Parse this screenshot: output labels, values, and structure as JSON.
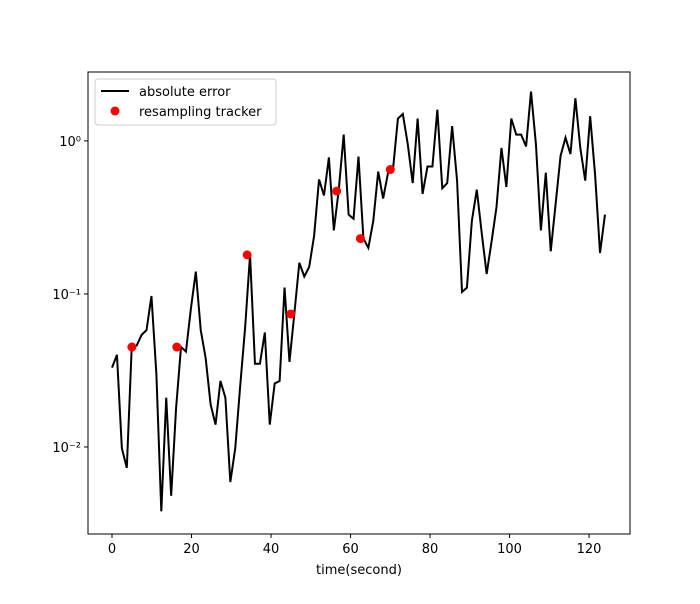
{
  "chart_data": {
    "type": "line",
    "xlabel": "time(second)",
    "xlim": [
      -6.04,
      130.3
    ],
    "xticks": [
      0,
      20,
      40,
      60,
      80,
      100,
      120
    ],
    "ylim": [
      0.0027,
      2.82
    ],
    "yscale": "log",
    "yticks": [
      {
        "value": 0.01,
        "label": "10⁻²"
      },
      {
        "value": 0.1,
        "label": "10⁻¹"
      },
      {
        "value": 1,
        "label": "10⁰"
      }
    ],
    "legend": "upper left",
    "series": [
      {
        "name": "absolute error",
        "kind": "line",
        "color": "#000000",
        "x": [
          0,
          1.24,
          2.48,
          3.72,
          4.96,
          6.2,
          7.44,
          8.68,
          9.92,
          11.16,
          12.4,
          13.64,
          14.88,
          16.12,
          17.36,
          18.6,
          19.84,
          21.08,
          22.32,
          23.56,
          24.8,
          26.04,
          27.28,
          28.52,
          29.76,
          31,
          32.24,
          33.48,
          34.72,
          35.96,
          37.2,
          38.44,
          39.68,
          40.92,
          42.16,
          43.4,
          44.64,
          45.88,
          47.12,
          48.36,
          49.6,
          50.84,
          52.08,
          53.32,
          54.56,
          55.8,
          57.04,
          58.28,
          59.52,
          60.76,
          62,
          63.24,
          64.48,
          65.72,
          66.96,
          68.2,
          69.44,
          70.68,
          71.92,
          73.16,
          74.4,
          75.64,
          76.88,
          78.12,
          79.36,
          80.6,
          81.84,
          83.08,
          84.32,
          85.56,
          86.8,
          88.04,
          89.28,
          90.52,
          91.76,
          93,
          94.24,
          95.48,
          96.72,
          97.96,
          99.2,
          100.44,
          101.68,
          102.92,
          104.16,
          105.4,
          106.64,
          107.88,
          109.12,
          110.36,
          111.6,
          112.84,
          114.08,
          115.32,
          116.56,
          117.8,
          119.04,
          120.28,
          121.52,
          122.76,
          124
        ],
        "values": [
          0.033,
          0.04,
          0.0098,
          0.0073,
          0.045,
          0.046,
          0.054,
          0.058,
          0.097,
          0.03,
          0.0038,
          0.021,
          0.0048,
          0.018,
          0.045,
          0.042,
          0.08,
          0.14,
          0.058,
          0.038,
          0.019,
          0.014,
          0.027,
          0.021,
          0.0059,
          0.0098,
          0.025,
          0.06,
          0.18,
          0.035,
          0.035,
          0.056,
          0.014,
          0.026,
          0.027,
          0.11,
          0.036,
          0.075,
          0.16,
          0.13,
          0.15,
          0.24,
          0.56,
          0.44,
          0.78,
          0.26,
          0.48,
          1.1,
          0.33,
          0.31,
          0.79,
          0.23,
          0.2,
          0.3,
          0.63,
          0.42,
          0.62,
          0.65,
          1.4,
          1.5,
          0.95,
          0.53,
          1.4,
          0.45,
          0.68,
          0.68,
          1.6,
          0.49,
          0.53,
          1.25,
          0.55,
          0.103,
          0.11,
          0.3,
          0.48,
          0.25,
          0.135,
          0.22,
          0.37,
          0.9,
          0.5,
          1.4,
          1.1,
          1.1,
          0.92,
          2.1,
          0.95,
          0.26,
          0.62,
          0.19,
          0.39,
          0.8,
          1.05,
          0.82,
          1.9,
          0.9,
          0.55,
          1.45,
          0.6,
          0.185,
          0.33
        ]
      },
      {
        "name": "resampling tracker",
        "kind": "scatter",
        "color": "#ff0000",
        "x": [
          5,
          16.3,
          34,
          45,
          56.5,
          62.5,
          70
        ],
        "values": [
          0.045,
          0.045,
          0.18,
          0.074,
          0.47,
          0.23,
          0.65
        ]
      }
    ]
  }
}
